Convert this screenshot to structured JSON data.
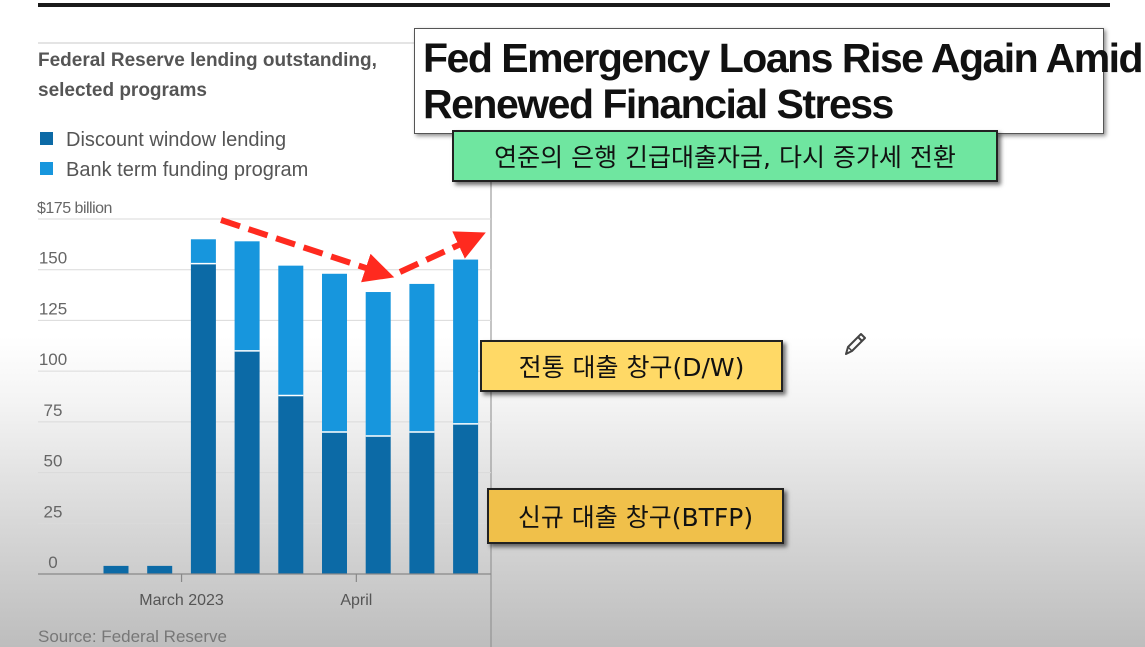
{
  "chart_data": {
    "type": "bar",
    "stacked": true,
    "title": "Federal Reserve lending outstanding, selected programs",
    "title_lines": [
      "Federal Reserve lending outstanding,",
      "selected programs"
    ],
    "ylabel": "",
    "xlabel": "",
    "ylim": [
      0,
      175
    ],
    "y_ticks": [
      {
        "value": 175,
        "label": "$175 billion"
      },
      {
        "value": 150,
        "label": "150"
      },
      {
        "value": 125,
        "label": "125"
      },
      {
        "value": 100,
        "label": "100"
      },
      {
        "value": 75,
        "label": "75"
      },
      {
        "value": 50,
        "label": "50"
      },
      {
        "value": 25,
        "label": "25"
      },
      {
        "value": 0,
        "label": "0"
      }
    ],
    "x_tick_labels": [
      {
        "after_bar": 1,
        "label": "March 2023"
      },
      {
        "after_bar": 5,
        "label": "April"
      }
    ],
    "bar_count": 9,
    "series": [
      {
        "name": "Discount window lending",
        "color": "#0c6aa6",
        "values": [
          4,
          4,
          153,
          110,
          88,
          70,
          68,
          70,
          74
        ]
      },
      {
        "name": "Bank term funding program",
        "color": "#1796dd",
        "values": [
          0,
          0,
          12,
          54,
          64,
          78,
          71,
          73,
          81
        ]
      }
    ],
    "source": "Source: Federal Reserve",
    "grid": true,
    "legend_position": "top-left"
  },
  "headline": {
    "line1": "Fed Emergency Loans Rise Again Amid",
    "line2": "Renewed Financial Stress"
  },
  "annotations": {
    "subtitle_korean": "연준의 은행 긴급대출자금, 다시 증가세 전환",
    "discount_window_label": "전통 대출 창구(D/W)",
    "btfp_label": "신규 대출 창구(BTFP)",
    "arrow_color": "#ff2a1f",
    "icons": [
      "pencil-icon"
    ]
  }
}
